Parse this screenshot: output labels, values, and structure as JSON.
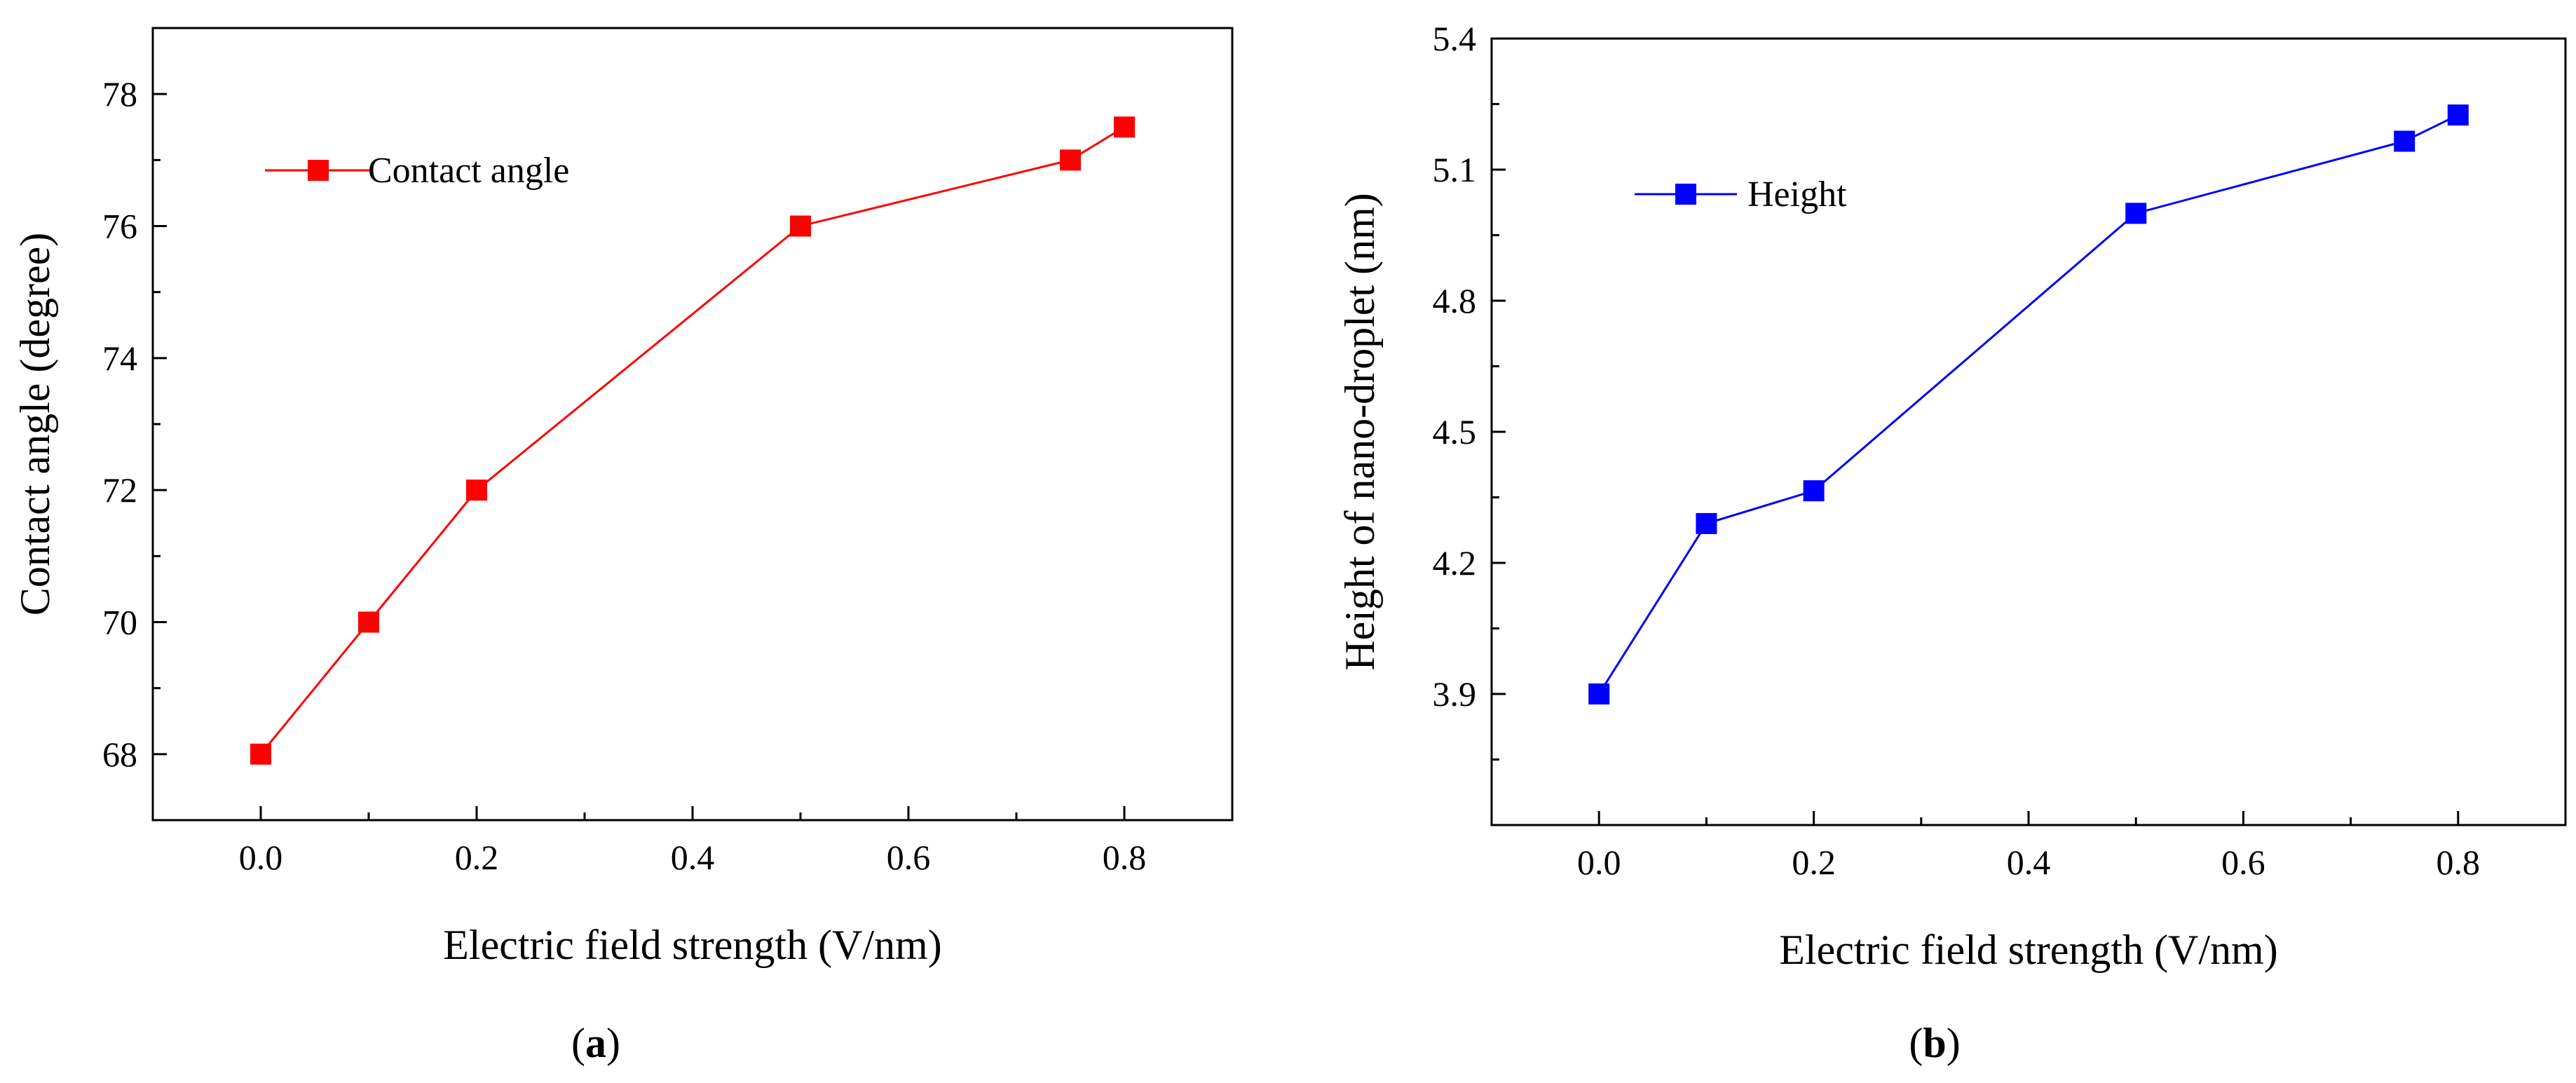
{
  "chart_data": [
    {
      "type": "line",
      "panel": "a",
      "caption": {
        "open": "(",
        "letter": "a",
        "close": ")"
      },
      "title": "",
      "xlabel": "Electric field strength (V/nm)",
      "ylabel": "Contact angle (degree)",
      "xlim": [
        -0.1,
        0.9
      ],
      "ylim": [
        67,
        79
      ],
      "xticks": [
        "0.0",
        "0.2",
        "0.4",
        "0.6",
        "0.8"
      ],
      "yticks": [
        "68",
        "70",
        "72",
        "74",
        "76",
        "78"
      ],
      "color": "#ff0000",
      "legend_position": "top-left",
      "series": [
        {
          "name": "Contact angle",
          "x": [
            0.0,
            0.1,
            0.2,
            0.5,
            0.75,
            0.8
          ],
          "y": [
            68,
            70,
            72,
            76,
            77,
            77.5
          ]
        }
      ]
    },
    {
      "type": "line",
      "panel": "b",
      "caption": {
        "open": "(",
        "letter": "b",
        "close": ")"
      },
      "title": "",
      "xlabel": "Electric field strength (V/nm)",
      "ylabel": "Height of nano-droplet (nm)",
      "xlim": [
        -0.1,
        0.9
      ],
      "ylim": [
        3.6,
        5.4
      ],
      "xticks": [
        "0.0",
        "0.2",
        "0.4",
        "0.6",
        "0.8"
      ],
      "yticks": [
        "3.9",
        "4.2",
        "4.5",
        "4.8",
        "5.1",
        "5.4"
      ],
      "color": "#0000ff",
      "legend_position": "top-left",
      "series": [
        {
          "name": "Height",
          "x": [
            0.0,
            0.1,
            0.2,
            0.5,
            0.75,
            0.8
          ],
          "y": [
            3.9,
            4.29,
            4.365,
            5.0,
            5.165,
            5.225
          ]
        }
      ]
    }
  ]
}
